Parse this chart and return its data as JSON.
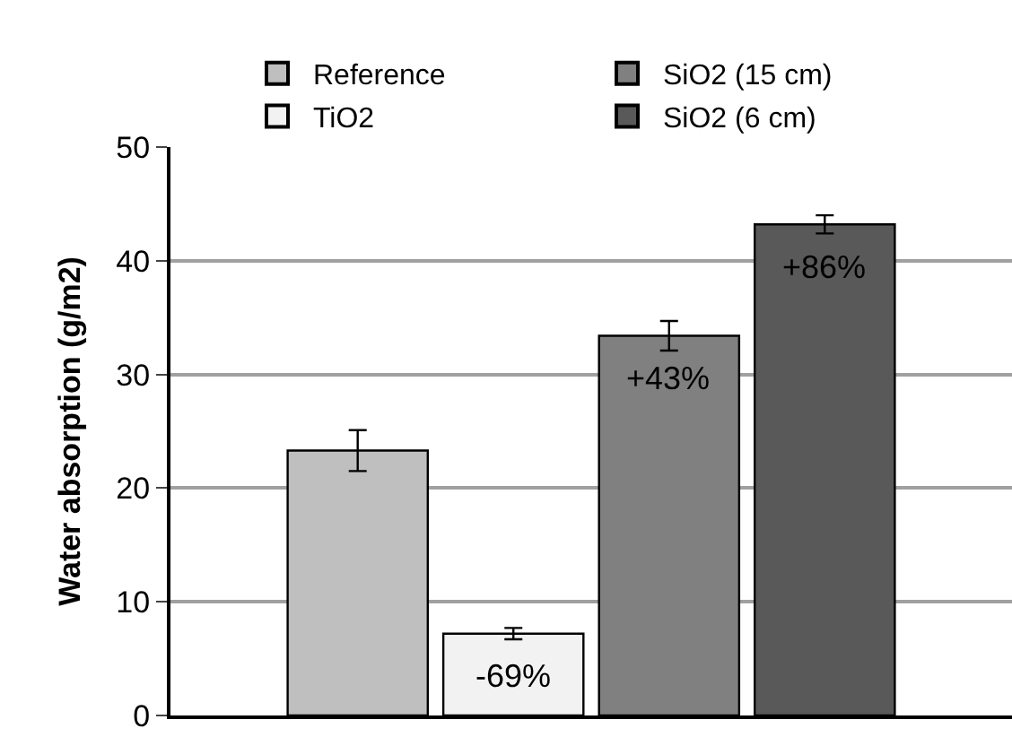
{
  "chart_data": {
    "type": "bar",
    "ylabel": "Water absorption (g/m2)",
    "categories": [
      null
    ],
    "series": [
      {
        "name": "Reference",
        "color": "#bfbfbf",
        "values": [
          23.3
        ],
        "errors": [
          1.8
        ]
      },
      {
        "name": "TiO2",
        "color": "#f2f2f2",
        "values": [
          7.2
        ],
        "errors": [
          0.5
        ]
      },
      {
        "name": "SiO2 (15 cm)",
        "color": "#808080",
        "values": [
          33.4
        ],
        "errors": [
          1.3
        ]
      },
      {
        "name": "SiO2 (6 cm)",
        "color": "#595959",
        "values": [
          43.2
        ],
        "errors": [
          0.8
        ]
      }
    ],
    "annotations": [
      {
        "text": "-69%",
        "y": 7.2
      },
      {
        "text": "+43%",
        "y": 33.4
      },
      {
        "text": "+86%",
        "y": 43.2
      }
    ],
    "ylim": [
      0,
      50
    ],
    "yticks": [
      0,
      10,
      20,
      30,
      40,
      50
    ],
    "grid": "y",
    "legend": "top"
  }
}
